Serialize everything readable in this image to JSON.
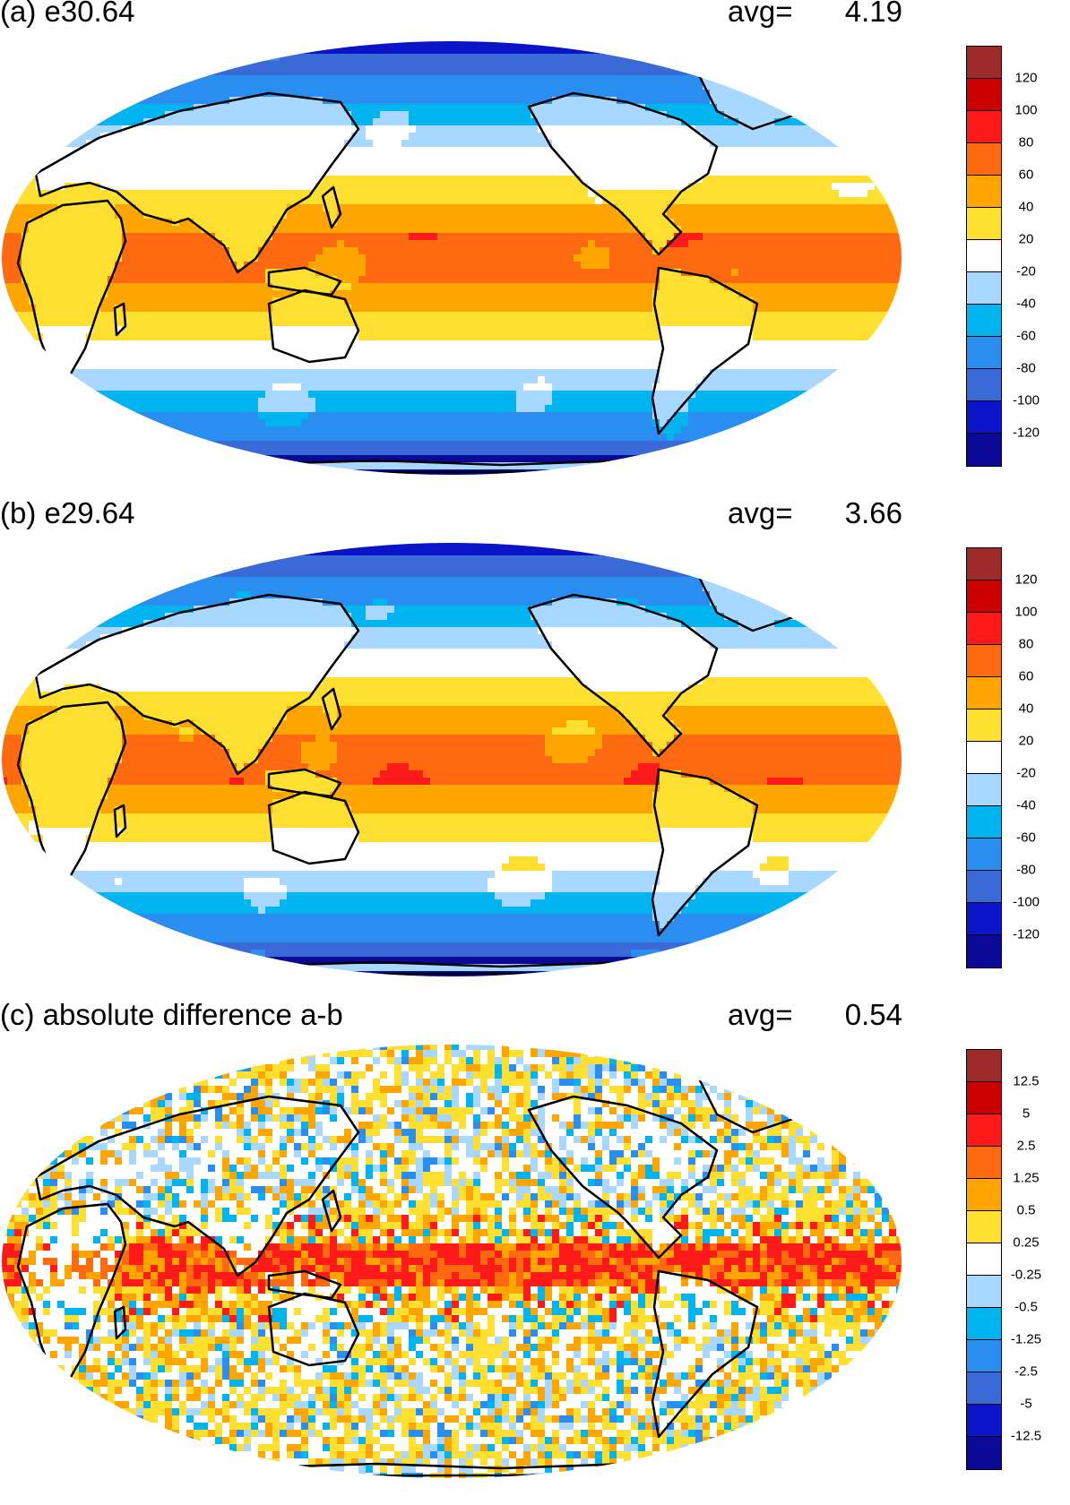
{
  "panels": [
    {
      "id": "a",
      "title": "(a) e30.64",
      "avg_label": "avg=",
      "avg_value": "4.19",
      "pattern": "field",
      "colorbar_labels": [
        "120",
        "100",
        "80",
        "60",
        "40",
        "20",
        "-20",
        "-40",
        "-60",
        "-80",
        "-100",
        "-120"
      ]
    },
    {
      "id": "b",
      "title": "(b) e29.64",
      "avg_label": "avg=",
      "avg_value": "3.66",
      "pattern": "field",
      "colorbar_labels": [
        "120",
        "100",
        "80",
        "60",
        "40",
        "20",
        "-20",
        "-40",
        "-60",
        "-80",
        "-100",
        "-120"
      ]
    },
    {
      "id": "c",
      "title": "(c) absolute difference a-b",
      "avg_label": "avg=",
      "avg_value": "0.54",
      "pattern": "difference",
      "colorbar_labels": [
        "12.5",
        "5",
        "2.5",
        "1.25",
        "0.5",
        "0.25",
        "-0.25",
        "-0.5",
        "-1.25",
        "-2.5",
        "-5",
        "-12.5"
      ]
    }
  ],
  "colorbar_colors": [
    "#9e2a2a",
    "#cc0000",
    "#ff1a1a",
    "#ff6a10",
    "#ffa500",
    "#ffe030",
    "#ffffff",
    "#a8d8ff",
    "#00b4f0",
    "#2a8ef0",
    "#3a6ad8",
    "#0a14c8",
    "#0a0a96"
  ]
}
